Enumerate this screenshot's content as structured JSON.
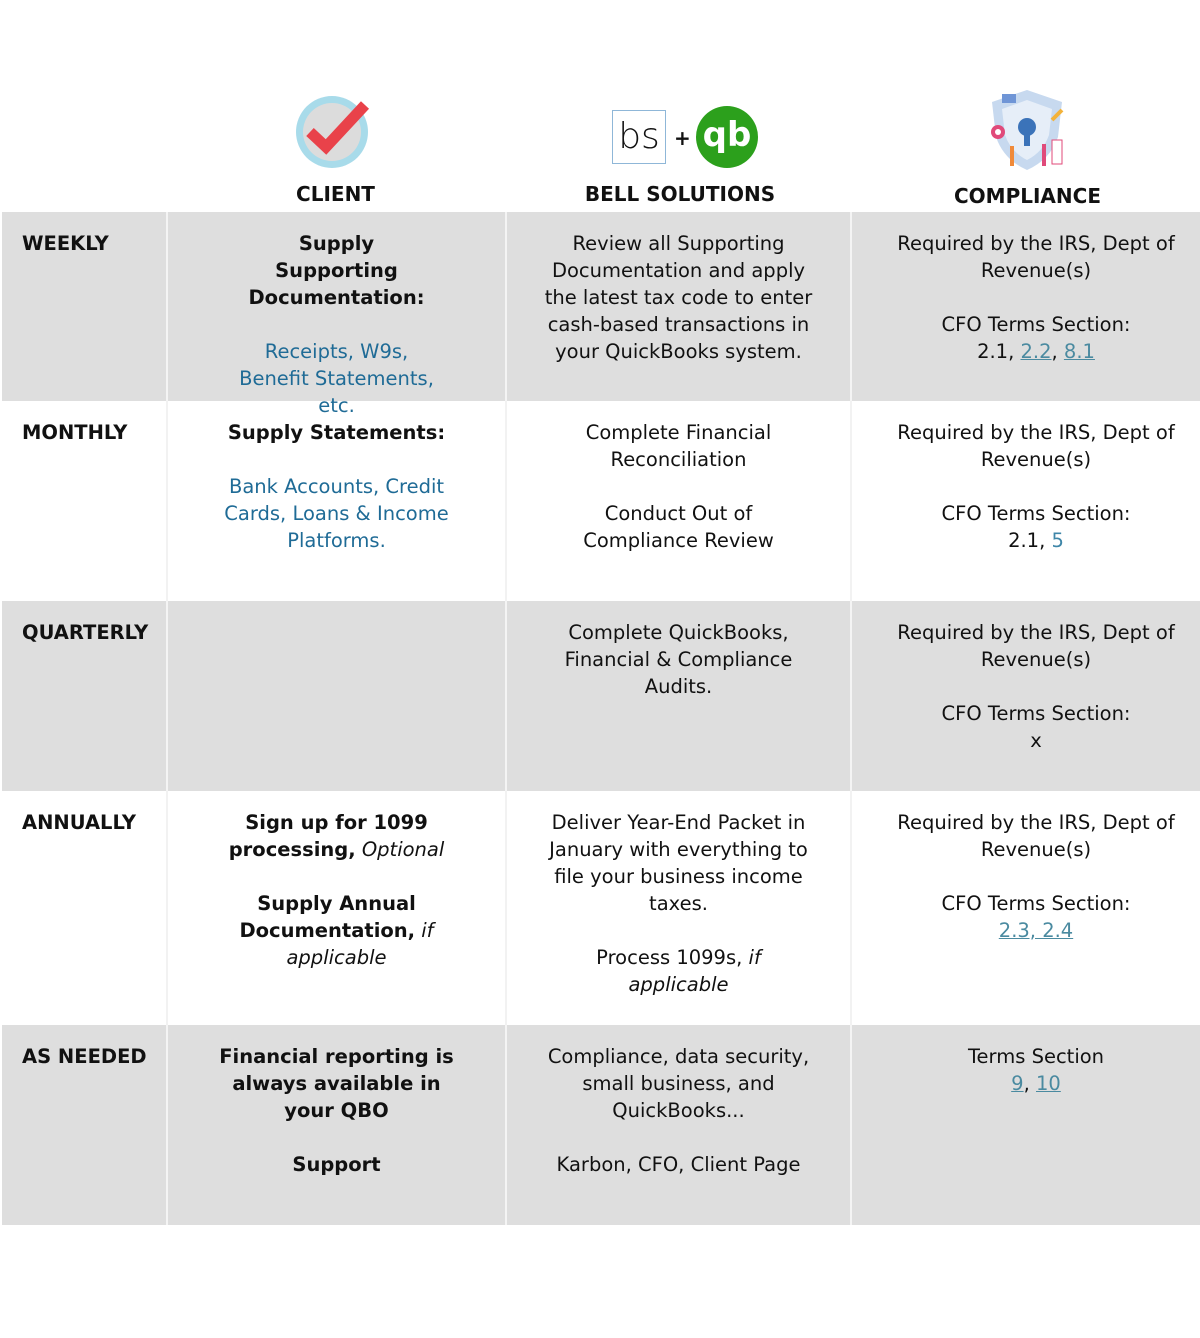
{
  "header": {
    "client": "CLIENT",
    "bell": "BELL SOLUTIONS",
    "compliance": "COMPLIANCE",
    "bs_logo": "bs",
    "plus": "+",
    "qb_logo": "qb"
  },
  "colors": {
    "link": "#1f6b96",
    "underlined_link": "#4a8aa0",
    "row_grey": "#dedede",
    "qb_green": "#2ca01c",
    "check_red": "#e9424a"
  },
  "rows": [
    {
      "label": "WEEKLY",
      "client": {
        "bold": "Supply Supporting Documentation:",
        "blue": "Receipts, W9s, Benefit Statements, etc."
      },
      "bell": "Review all Supporting Documentation and apply the latest tax code to enter cash-based transactions in your QuickBooks system.",
      "compliance": {
        "req": "Required by the IRS, Dept of Revenue(s)",
        "terms": "CFO Terms Section:",
        "plain": "2.1, ",
        "links": [
          "2.2",
          "8.1"
        ]
      }
    },
    {
      "label": "MONTHLY",
      "client": {
        "bold": "Supply Statements:",
        "blue": "Bank Accounts, Credit Cards, Loans & Income Platforms."
      },
      "bell": [
        "Complete Financial Reconciliation",
        "Conduct Out of Compliance Review"
      ],
      "compliance": {
        "req": "Required by the IRS, Dept of Revenue(s)",
        "terms": "CFO Terms Section:",
        "plain": "2.1, ",
        "blue": "5"
      }
    },
    {
      "label": "QUARTERLY",
      "bell": "Complete QuickBooks, Financial & Compliance Audits.",
      "compliance": {
        "req": "Required by the IRS, Dept of Revenue(s)",
        "terms": "CFO Terms Section:",
        "plain": "x"
      }
    },
    {
      "label": "ANNUALLY",
      "client": {
        "bold1": "Sign up for 1099 processing,",
        "italic1": "Optional",
        "bold2": "Supply Annual Documentation,",
        "italic2": "if applicable"
      },
      "bell": {
        "p1": "Deliver Year-End Packet in January with everything to file your business income taxes.",
        "p2": "Process 1099s,",
        "p2i": "if applicable"
      },
      "compliance": {
        "req": "Required by the IRS, Dept of Revenue(s)",
        "terms": "CFO Terms Section:",
        "link": "2.3, 2.4"
      }
    },
    {
      "label": "AS NEEDED",
      "client": {
        "bold1": "Financial reporting is always available in your QBO",
        "bold2": "Support"
      },
      "bell": {
        "p1": "Compliance, data security, small business, and QuickBooks...",
        "p2": "Karbon, CFO, Client Page"
      },
      "compliance": {
        "terms": "Terms Section",
        "links": [
          "9",
          "10"
        ]
      }
    }
  ]
}
